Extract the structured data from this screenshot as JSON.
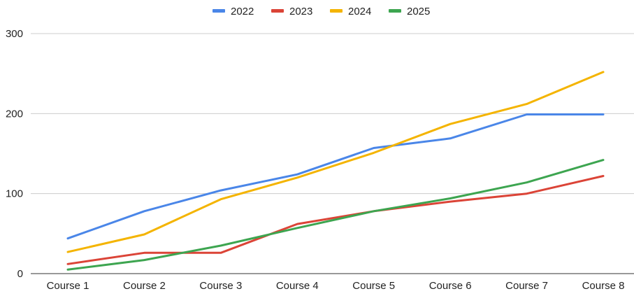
{
  "chart_data": {
    "type": "line",
    "title": "",
    "xlabel": "",
    "ylabel": "",
    "categories": [
      "Course 1",
      "Course 2",
      "Course 3",
      "Course 4",
      "Course 5",
      "Course 6",
      "Course 7",
      "Course 8"
    ],
    "ylim": [
      0,
      300
    ],
    "yticks": [
      "0",
      "100",
      "200",
      "300"
    ],
    "grid": true,
    "legend_position": "top",
    "series": [
      {
        "name": "2022",
        "color": "#4a86e8",
        "values": [
          44,
          78,
          104,
          124,
          157,
          169,
          199,
          199
        ]
      },
      {
        "name": "2023",
        "color": "#db4437",
        "values": [
          12,
          26,
          26,
          62,
          78,
          90,
          100,
          122
        ]
      },
      {
        "name": "2024",
        "color": "#f4b400",
        "values": [
          27,
          49,
          93,
          120,
          151,
          187,
          212,
          252
        ]
      },
      {
        "name": "2025",
        "color": "#3da550",
        "values": [
          5,
          17,
          35,
          57,
          78,
          94,
          114,
          142
        ]
      }
    ]
  }
}
